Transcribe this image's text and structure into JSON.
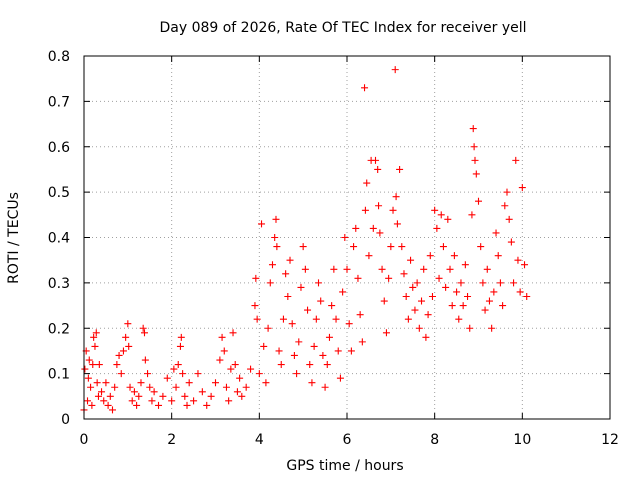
{
  "chart_data": {
    "type": "scatter",
    "title": "Day 089 of 2026, Rate Of TEC Index for receiver yell",
    "xlabel": "GPS time / hours",
    "ylabel": "ROTI / TECUs",
    "xlim": [
      0,
      12
    ],
    "ylim": [
      0,
      0.8
    ],
    "xticks": [
      0,
      2,
      4,
      6,
      8,
      10,
      12
    ],
    "xtick_labels": [
      "0",
      "2",
      "4",
      "6",
      "8",
      "10",
      "12"
    ],
    "yticks": [
      0,
      0.1,
      0.2,
      0.3,
      0.4,
      0.5,
      0.6,
      0.7,
      0.8
    ],
    "ytick_labels": [
      "0",
      "0.1",
      "0.2",
      "0.3",
      "0.4",
      "0.5",
      "0.6",
      "0.7",
      "0.8"
    ],
    "grid": true,
    "marker": "+",
    "color": "#ff0000",
    "series": [
      {
        "name": "ROTI",
        "points": [
          [
            0.0,
            0.02
          ],
          [
            0.02,
            0.11
          ],
          [
            0.05,
            0.15
          ],
          [
            0.08,
            0.04
          ],
          [
            0.1,
            0.09
          ],
          [
            0.12,
            0.13
          ],
          [
            0.15,
            0.07
          ],
          [
            0.18,
            0.03
          ],
          [
            0.2,
            0.12
          ],
          [
            0.22,
            0.18
          ],
          [
            0.25,
            0.16
          ],
          [
            0.28,
            0.19
          ],
          [
            0.3,
            0.08
          ],
          [
            0.33,
            0.05
          ],
          [
            0.35,
            0.12
          ],
          [
            0.4,
            0.06
          ],
          [
            0.45,
            0.04
          ],
          [
            0.5,
            0.08
          ],
          [
            0.55,
            0.03
          ],
          [
            0.6,
            0.05
          ],
          [
            0.65,
            0.02
          ],
          [
            0.7,
            0.07
          ],
          [
            0.75,
            0.12
          ],
          [
            0.8,
            0.14
          ],
          [
            0.85,
            0.1
          ],
          [
            0.9,
            0.15
          ],
          [
            0.95,
            0.18
          ],
          [
            1.0,
            0.21
          ],
          [
            1.02,
            0.16
          ],
          [
            1.05,
            0.07
          ],
          [
            1.1,
            0.04
          ],
          [
            1.15,
            0.06
          ],
          [
            1.2,
            0.03
          ],
          [
            1.25,
            0.05
          ],
          [
            1.3,
            0.08
          ],
          [
            1.35,
            0.2
          ],
          [
            1.38,
            0.19
          ],
          [
            1.4,
            0.13
          ],
          [
            1.45,
            0.1
          ],
          [
            1.5,
            0.07
          ],
          [
            1.55,
            0.04
          ],
          [
            1.6,
            0.06
          ],
          [
            1.7,
            0.03
          ],
          [
            1.8,
            0.05
          ],
          [
            1.9,
            0.09
          ],
          [
            2.0,
            0.04
          ],
          [
            2.05,
            0.11
          ],
          [
            2.1,
            0.07
          ],
          [
            2.15,
            0.12
          ],
          [
            2.2,
            0.16
          ],
          [
            2.22,
            0.18
          ],
          [
            2.25,
            0.1
          ],
          [
            2.3,
            0.05
          ],
          [
            2.35,
            0.03
          ],
          [
            2.4,
            0.08
          ],
          [
            2.5,
            0.04
          ],
          [
            2.6,
            0.1
          ],
          [
            2.7,
            0.06
          ],
          [
            2.8,
            0.03
          ],
          [
            2.9,
            0.05
          ],
          [
            3.0,
            0.08
          ],
          [
            3.1,
            0.13
          ],
          [
            3.15,
            0.18
          ],
          [
            3.2,
            0.15
          ],
          [
            3.25,
            0.07
          ],
          [
            3.3,
            0.04
          ],
          [
            3.35,
            0.11
          ],
          [
            3.4,
            0.19
          ],
          [
            3.45,
            0.12
          ],
          [
            3.5,
            0.06
          ],
          [
            3.55,
            0.09
          ],
          [
            3.6,
            0.05
          ],
          [
            3.7,
            0.07
          ],
          [
            3.8,
            0.11
          ],
          [
            3.9,
            0.25
          ],
          [
            3.92,
            0.31
          ],
          [
            3.95,
            0.22
          ],
          [
            4.0,
            0.1
          ],
          [
            4.05,
            0.43
          ],
          [
            4.1,
            0.16
          ],
          [
            4.15,
            0.08
          ],
          [
            4.2,
            0.2
          ],
          [
            4.25,
            0.3
          ],
          [
            4.3,
            0.34
          ],
          [
            4.35,
            0.4
          ],
          [
            4.38,
            0.44
          ],
          [
            4.4,
            0.38
          ],
          [
            4.45,
            0.15
          ],
          [
            4.5,
            0.12
          ],
          [
            4.55,
            0.22
          ],
          [
            4.6,
            0.32
          ],
          [
            4.65,
            0.27
          ],
          [
            4.7,
            0.35
          ],
          [
            4.75,
            0.21
          ],
          [
            4.8,
            0.14
          ],
          [
            4.85,
            0.1
          ],
          [
            4.9,
            0.17
          ],
          [
            4.95,
            0.29
          ],
          [
            5.0,
            0.38
          ],
          [
            5.05,
            0.33
          ],
          [
            5.1,
            0.24
          ],
          [
            5.15,
            0.12
          ],
          [
            5.2,
            0.08
          ],
          [
            5.25,
            0.16
          ],
          [
            5.3,
            0.22
          ],
          [
            5.35,
            0.3
          ],
          [
            5.4,
            0.26
          ],
          [
            5.45,
            0.14
          ],
          [
            5.5,
            0.07
          ],
          [
            5.55,
            0.12
          ],
          [
            5.6,
            0.18
          ],
          [
            5.65,
            0.25
          ],
          [
            5.7,
            0.33
          ],
          [
            5.75,
            0.22
          ],
          [
            5.8,
            0.15
          ],
          [
            5.85,
            0.09
          ],
          [
            5.9,
            0.28
          ],
          [
            5.95,
            0.4
          ],
          [
            6.0,
            0.33
          ],
          [
            6.05,
            0.21
          ],
          [
            6.1,
            0.15
          ],
          [
            6.15,
            0.38
          ],
          [
            6.2,
            0.42
          ],
          [
            6.25,
            0.31
          ],
          [
            6.3,
            0.23
          ],
          [
            6.35,
            0.17
          ],
          [
            6.4,
            0.73
          ],
          [
            6.42,
            0.46
          ],
          [
            6.45,
            0.52
          ],
          [
            6.5,
            0.36
          ],
          [
            6.55,
            0.57
          ],
          [
            6.6,
            0.42
          ],
          [
            6.65,
            0.57
          ],
          [
            6.7,
            0.55
          ],
          [
            6.72,
            0.47
          ],
          [
            6.75,
            0.41
          ],
          [
            6.8,
            0.33
          ],
          [
            6.85,
            0.26
          ],
          [
            6.9,
            0.19
          ],
          [
            6.95,
            0.31
          ],
          [
            7.0,
            0.38
          ],
          [
            7.05,
            0.46
          ],
          [
            7.1,
            0.77
          ],
          [
            7.12,
            0.49
          ],
          [
            7.15,
            0.43
          ],
          [
            7.2,
            0.55
          ],
          [
            7.25,
            0.38
          ],
          [
            7.3,
            0.32
          ],
          [
            7.35,
            0.27
          ],
          [
            7.4,
            0.22
          ],
          [
            7.45,
            0.35
          ],
          [
            7.5,
            0.29
          ],
          [
            7.55,
            0.24
          ],
          [
            7.6,
            0.3
          ],
          [
            7.65,
            0.2
          ],
          [
            7.7,
            0.26
          ],
          [
            7.75,
            0.33
          ],
          [
            7.8,
            0.18
          ],
          [
            7.85,
            0.23
          ],
          [
            7.9,
            0.36
          ],
          [
            7.95,
            0.27
          ],
          [
            8.0,
            0.46
          ],
          [
            8.05,
            0.42
          ],
          [
            8.1,
            0.31
          ],
          [
            8.15,
            0.45
          ],
          [
            8.2,
            0.38
          ],
          [
            8.25,
            0.29
          ],
          [
            8.3,
            0.44
          ],
          [
            8.35,
            0.33
          ],
          [
            8.4,
            0.25
          ],
          [
            8.45,
            0.36
          ],
          [
            8.5,
            0.28
          ],
          [
            8.55,
            0.22
          ],
          [
            8.6,
            0.3
          ],
          [
            8.65,
            0.25
          ],
          [
            8.7,
            0.34
          ],
          [
            8.75,
            0.27
          ],
          [
            8.8,
            0.2
          ],
          [
            8.85,
            0.45
          ],
          [
            8.88,
            0.64
          ],
          [
            8.9,
            0.6
          ],
          [
            8.92,
            0.57
          ],
          [
            8.95,
            0.54
          ],
          [
            9.0,
            0.48
          ],
          [
            9.05,
            0.38
          ],
          [
            9.1,
            0.3
          ],
          [
            9.15,
            0.24
          ],
          [
            9.2,
            0.33
          ],
          [
            9.25,
            0.26
          ],
          [
            9.3,
            0.2
          ],
          [
            9.35,
            0.28
          ],
          [
            9.4,
            0.41
          ],
          [
            9.45,
            0.36
          ],
          [
            9.5,
            0.3
          ],
          [
            9.55,
            0.25
          ],
          [
            9.6,
            0.47
          ],
          [
            9.65,
            0.5
          ],
          [
            9.7,
            0.44
          ],
          [
            9.75,
            0.39
          ],
          [
            9.8,
            0.3
          ],
          [
            9.85,
            0.57
          ],
          [
            9.9,
            0.35
          ],
          [
            9.95,
            0.28
          ],
          [
            10.0,
            0.51
          ],
          [
            10.05,
            0.34
          ],
          [
            10.1,
            0.27
          ]
        ]
      }
    ]
  }
}
